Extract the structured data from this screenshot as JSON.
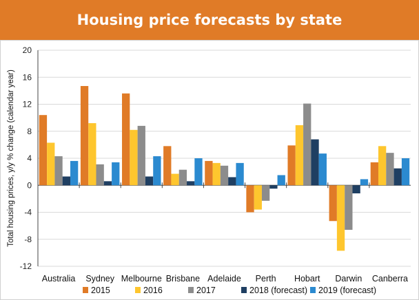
{
  "header": {
    "title": "Housing price forecasts by state"
  },
  "chart_data": {
    "type": "bar",
    "title": "",
    "xlabel": "",
    "ylabel": "Total housing prices, y/y % change (calendar year)",
    "ylim": [
      -12,
      20
    ],
    "yticks": [
      -12,
      -8,
      -4,
      0,
      4,
      8,
      12,
      16,
      20
    ],
    "grid": true,
    "legend_position": "bottom",
    "categories": [
      "Australia",
      "Sydney",
      "Melbourne",
      "Brisbane",
      "Adelaide",
      "Perth",
      "Hobart",
      "Darwin",
      "Canberra"
    ],
    "series": [
      {
        "name": "2015",
        "color": "#e07b27",
        "values": [
          10.4,
          14.7,
          13.6,
          5.8,
          3.6,
          -4.0,
          5.9,
          -5.3,
          3.4
        ]
      },
      {
        "name": "2016",
        "color": "#fec62e",
        "values": [
          6.3,
          9.2,
          8.2,
          1.7,
          3.3,
          -3.6,
          8.9,
          -9.7,
          5.8
        ]
      },
      {
        "name": "2017",
        "color": "#8c8c8c",
        "values": [
          4.3,
          3.1,
          8.8,
          2.3,
          2.9,
          -2.3,
          12.1,
          -6.6,
          4.8
        ]
      },
      {
        "name": "2018 (forecast)",
        "color": "#1f3f62",
        "values": [
          1.3,
          0.6,
          1.3,
          0.6,
          1.2,
          -0.5,
          6.8,
          -1.2,
          2.5
        ]
      },
      {
        "name": "2019 (forecast)",
        "color": "#2b8ad0",
        "values": [
          3.6,
          3.4,
          4.3,
          4.0,
          3.3,
          1.5,
          4.7,
          0.9,
          4.0
        ]
      }
    ]
  }
}
